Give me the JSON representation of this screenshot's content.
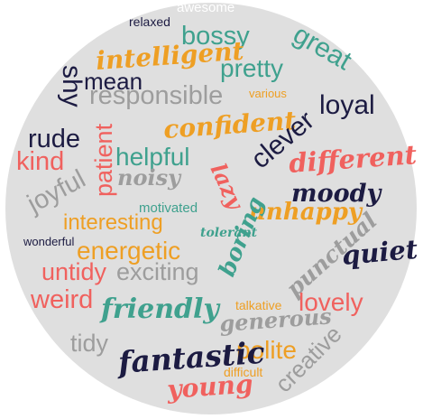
{
  "palette": {
    "background": "#ffffff",
    "circle": "#dfdfdf",
    "navy": "#1c1b42",
    "teal": "#3fa18e",
    "orange": "#ee9f24",
    "coral": "#f0615e",
    "gray": "#9d9d9d",
    "white": "#ffffff"
  },
  "words": [
    {
      "id": "awesome",
      "text": "awesome",
      "color": "white",
      "style": "plain"
    },
    {
      "id": "relaxed",
      "text": "relaxed",
      "color": "navy",
      "style": "plain"
    },
    {
      "id": "bossy",
      "text": "bossy",
      "color": "teal",
      "style": "plain"
    },
    {
      "id": "great",
      "text": "great",
      "color": "teal",
      "style": "plain"
    },
    {
      "id": "intelligent",
      "text": "intelligent",
      "color": "orange",
      "style": "script"
    },
    {
      "id": "pretty",
      "text": "pretty",
      "color": "teal",
      "style": "plain"
    },
    {
      "id": "shy",
      "text": "shy",
      "color": "navy",
      "style": "plain"
    },
    {
      "id": "mean",
      "text": "mean",
      "color": "navy",
      "style": "plain"
    },
    {
      "id": "responsible",
      "text": "responsible",
      "color": "gray",
      "style": "plain"
    },
    {
      "id": "various",
      "text": "various",
      "color": "orange",
      "style": "plain"
    },
    {
      "id": "loyal",
      "text": "loyal",
      "color": "navy",
      "style": "plain"
    },
    {
      "id": "rude",
      "text": "rude",
      "color": "navy",
      "style": "plain"
    },
    {
      "id": "kind",
      "text": "kind",
      "color": "coral",
      "style": "plain"
    },
    {
      "id": "confident",
      "text": "confident",
      "color": "orange",
      "style": "script"
    },
    {
      "id": "clever",
      "text": "clever",
      "color": "navy",
      "style": "plain"
    },
    {
      "id": "patient",
      "text": "patient",
      "color": "coral",
      "style": "plain"
    },
    {
      "id": "helpful",
      "text": "helpful",
      "color": "teal",
      "style": "plain"
    },
    {
      "id": "different",
      "text": "different",
      "color": "coral",
      "style": "script"
    },
    {
      "id": "noisy",
      "text": "noisy",
      "color": "gray",
      "style": "script"
    },
    {
      "id": "joyful",
      "text": "joyful",
      "color": "gray",
      "style": "plain"
    },
    {
      "id": "lazy",
      "text": "lazy",
      "color": "coral",
      "style": "script"
    },
    {
      "id": "moody",
      "text": "moody",
      "color": "navy",
      "style": "script"
    },
    {
      "id": "motivated",
      "text": "motivated",
      "color": "teal",
      "style": "plain"
    },
    {
      "id": "unhappy",
      "text": "unhappy",
      "color": "orange",
      "style": "script"
    },
    {
      "id": "interesting",
      "text": "interesting",
      "color": "orange",
      "style": "plain"
    },
    {
      "id": "tolerant",
      "text": "tolerant",
      "color": "teal",
      "style": "script"
    },
    {
      "id": "wonderful",
      "text": "wonderful",
      "color": "navy",
      "style": "plain"
    },
    {
      "id": "boring",
      "text": "boring",
      "color": "teal",
      "style": "script"
    },
    {
      "id": "punctual",
      "text": "punctual",
      "color": "gray",
      "style": "script"
    },
    {
      "id": "quiet",
      "text": "quiet",
      "color": "navy",
      "style": "script"
    },
    {
      "id": "energetic",
      "text": "energetic",
      "color": "orange",
      "style": "plain"
    },
    {
      "id": "untidy",
      "text": "untidy",
      "color": "coral",
      "style": "plain"
    },
    {
      "id": "exciting",
      "text": "exciting",
      "color": "gray",
      "style": "plain"
    },
    {
      "id": "weird",
      "text": "weird",
      "color": "coral",
      "style": "plain"
    },
    {
      "id": "friendly",
      "text": "friendly",
      "color": "teal",
      "style": "script"
    },
    {
      "id": "talkative",
      "text": "talkative",
      "color": "orange",
      "style": "plain"
    },
    {
      "id": "lovely",
      "text": "lovely",
      "color": "coral",
      "style": "plain"
    },
    {
      "id": "generous",
      "text": "generous",
      "color": "gray",
      "style": "script"
    },
    {
      "id": "tidy",
      "text": "tidy",
      "color": "gray",
      "style": "plain"
    },
    {
      "id": "creative",
      "text": "creative",
      "color": "gray",
      "style": "plain"
    },
    {
      "id": "polite",
      "text": "polite",
      "color": "orange",
      "style": "plain"
    },
    {
      "id": "fantastic",
      "text": "fantastic",
      "color": "navy",
      "style": "script"
    },
    {
      "id": "difficult",
      "text": "difficult",
      "color": "orange",
      "style": "plain"
    },
    {
      "id": "young",
      "text": "young",
      "color": "coral",
      "style": "script"
    }
  ]
}
